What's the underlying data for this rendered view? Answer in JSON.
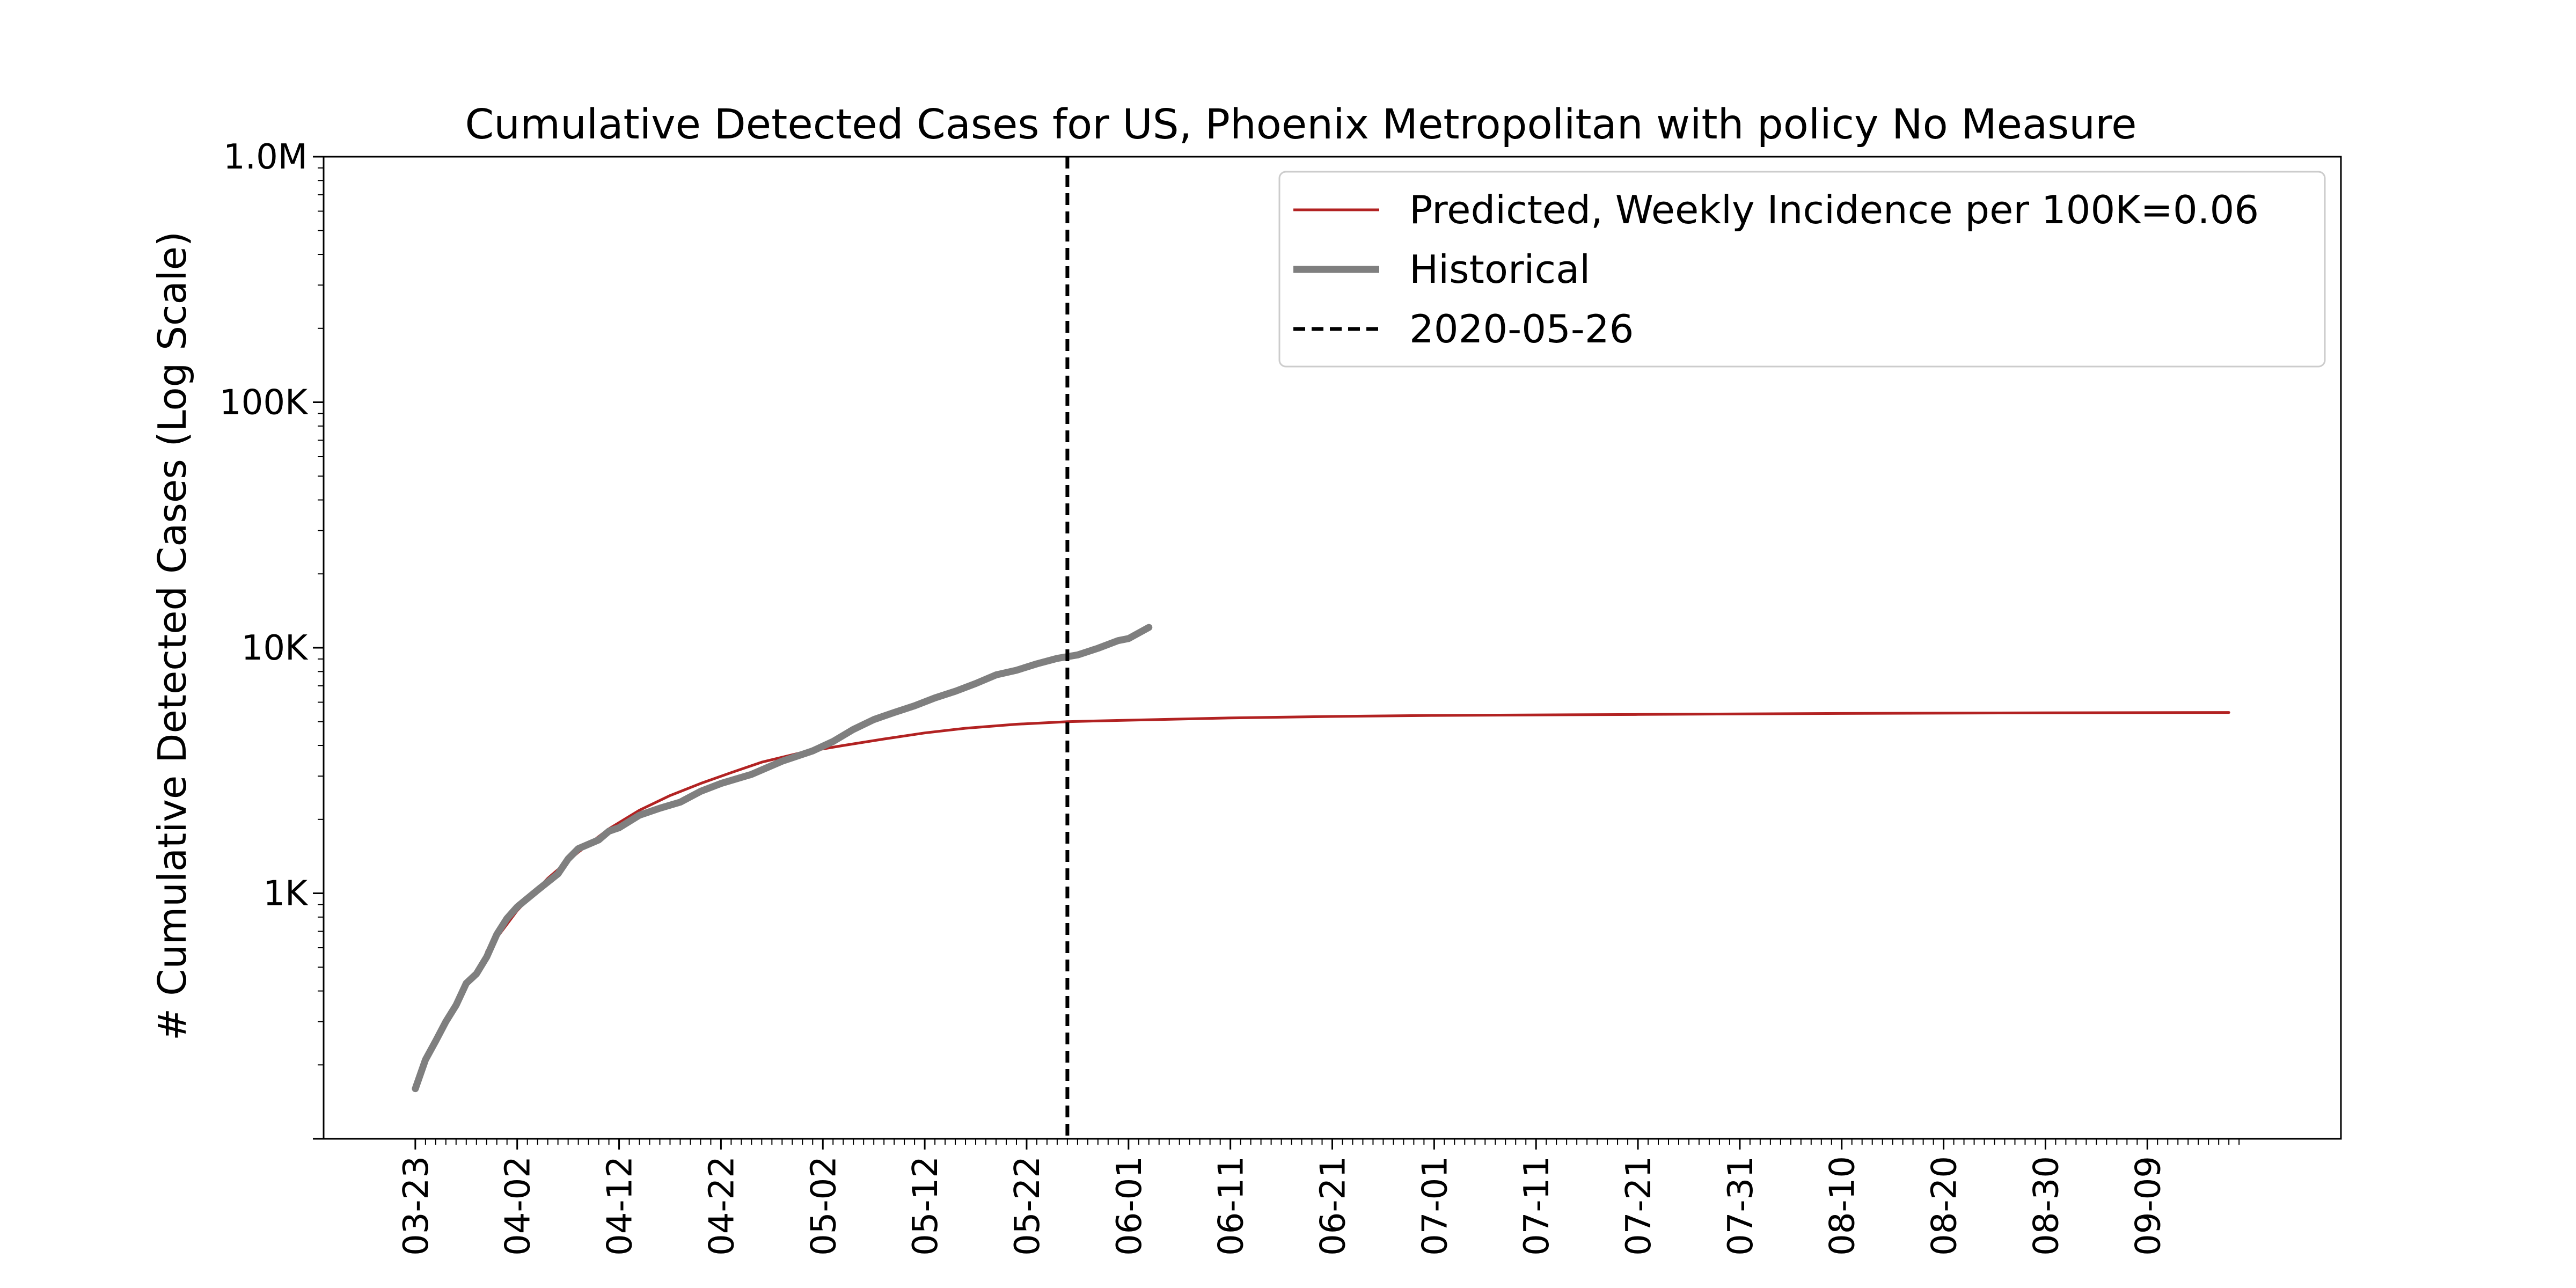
{
  "chart_data": {
    "type": "line",
    "title": "Cumulative Detected Cases for US, Phoenix Metropolitan with policy No Measure",
    "xlabel": "",
    "ylabel": "# Cumulative Detected Cases (Log Scale)",
    "y_scale": "log",
    "ylim": [
      100,
      1000000
    ],
    "xlim": [
      "2020-03-14",
      "2020-09-28"
    ],
    "y_ticks": [
      {
        "value": 1000,
        "label": "1K"
      },
      {
        "value": 10000,
        "label": "10K"
      },
      {
        "value": 100000,
        "label": "100K"
      },
      {
        "value": 1000000,
        "label": "1.0M"
      }
    ],
    "x_tick_labels": [
      "03-23",
      "04-02",
      "04-12",
      "04-22",
      "05-02",
      "05-12",
      "05-22",
      "06-01",
      "06-11",
      "06-21",
      "07-01",
      "07-11",
      "07-21",
      "07-31",
      "08-10",
      "08-20",
      "08-30",
      "09-09"
    ],
    "x_tick_dates": [
      "2020-03-23",
      "2020-04-02",
      "2020-04-12",
      "2020-04-22",
      "2020-05-02",
      "2020-05-12",
      "2020-05-22",
      "2020-06-01",
      "2020-06-11",
      "2020-06-21",
      "2020-07-01",
      "2020-07-11",
      "2020-07-21",
      "2020-07-31",
      "2020-08-10",
      "2020-08-20",
      "2020-08-30",
      "2020-09-09"
    ],
    "minor_ticks_daily": {
      "start": "2020-03-23",
      "end": "2020-09-18"
    },
    "vline": {
      "date": "2020-05-26",
      "label": "2020-05-26",
      "style": "dashed",
      "color": "#000000"
    },
    "legend": {
      "position": "upper right"
    },
    "grid": false,
    "series": [
      {
        "name": "Predicted, Weekly Incidence per 100K=0.06",
        "color": "#b22222",
        "style": "thin",
        "points": [
          [
            "2020-03-30",
            580
          ],
          [
            "2020-04-02",
            850
          ],
          [
            "2020-04-05",
            1150
          ],
          [
            "2020-04-08",
            1470
          ],
          [
            "2020-04-11",
            1830
          ],
          [
            "2020-04-14",
            2180
          ],
          [
            "2020-04-17",
            2500
          ],
          [
            "2020-04-20",
            2800
          ],
          [
            "2020-04-23",
            3100
          ],
          [
            "2020-04-26",
            3420
          ],
          [
            "2020-04-30",
            3750
          ],
          [
            "2020-05-04",
            4000
          ],
          [
            "2020-05-08",
            4250
          ],
          [
            "2020-05-12",
            4500
          ],
          [
            "2020-05-16",
            4700
          ],
          [
            "2020-05-21",
            4880
          ],
          [
            "2020-05-26",
            5000
          ],
          [
            "2020-06-01",
            5070
          ],
          [
            "2020-06-11",
            5180
          ],
          [
            "2020-06-21",
            5250
          ],
          [
            "2020-07-01",
            5300
          ],
          [
            "2020-07-21",
            5350
          ],
          [
            "2020-08-10",
            5400
          ],
          [
            "2020-08-30",
            5430
          ],
          [
            "2020-09-17",
            5450
          ]
        ]
      },
      {
        "name": "Historical",
        "color": "#7f7f7f",
        "style": "thick",
        "points": [
          [
            "2020-03-23",
            160
          ],
          [
            "2020-03-24",
            210
          ],
          [
            "2020-03-25",
            250
          ],
          [
            "2020-03-26",
            300
          ],
          [
            "2020-03-27",
            350
          ],
          [
            "2020-03-28",
            430
          ],
          [
            "2020-03-29",
            470
          ],
          [
            "2020-03-30",
            550
          ],
          [
            "2020-03-31",
            680
          ],
          [
            "2020-04-01",
            790
          ],
          [
            "2020-04-02",
            880
          ],
          [
            "2020-04-04",
            1030
          ],
          [
            "2020-04-06",
            1200
          ],
          [
            "2020-04-07",
            1380
          ],
          [
            "2020-04-08",
            1520
          ],
          [
            "2020-04-10",
            1650
          ],
          [
            "2020-04-11",
            1790
          ],
          [
            "2020-04-12",
            1850
          ],
          [
            "2020-04-14",
            2080
          ],
          [
            "2020-04-16",
            2220
          ],
          [
            "2020-04-18",
            2350
          ],
          [
            "2020-04-20",
            2600
          ],
          [
            "2020-04-22",
            2800
          ],
          [
            "2020-04-25",
            3050
          ],
          [
            "2020-04-28",
            3450
          ],
          [
            "2020-05-01",
            3800
          ],
          [
            "2020-05-03",
            4150
          ],
          [
            "2020-05-05",
            4650
          ],
          [
            "2020-05-07",
            5100
          ],
          [
            "2020-05-09",
            5450
          ],
          [
            "2020-05-11",
            5800
          ],
          [
            "2020-05-13",
            6250
          ],
          [
            "2020-05-15",
            6650
          ],
          [
            "2020-05-17",
            7150
          ],
          [
            "2020-05-19",
            7750
          ],
          [
            "2020-05-21",
            8100
          ],
          [
            "2020-05-23",
            8600
          ],
          [
            "2020-05-25",
            9050
          ],
          [
            "2020-05-27",
            9350
          ],
          [
            "2020-05-29",
            9950
          ],
          [
            "2020-05-31",
            10700
          ],
          [
            "2020-06-01",
            10900
          ],
          [
            "2020-06-03",
            12100
          ]
        ]
      }
    ]
  }
}
